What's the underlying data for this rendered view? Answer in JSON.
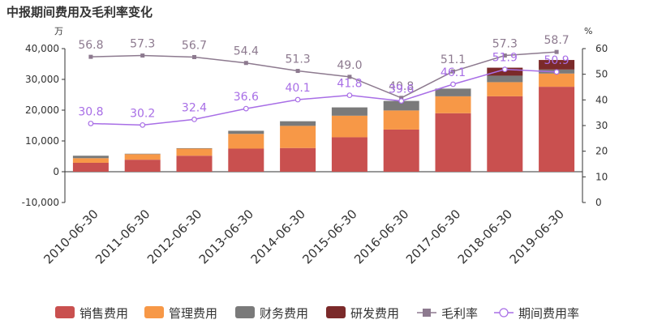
{
  "chart_data": {
    "type": "bar",
    "title": "中报期间费用及毛利率变化",
    "left_unit": "万",
    "right_unit": "%",
    "categories": [
      "2010-06-30",
      "2011-06-30",
      "2012-06-30",
      "2013-06-30",
      "2014-06-30",
      "2015-06-30",
      "2016-06-30",
      "2017-06-30",
      "2018-06-30",
      "2019-06-30"
    ],
    "ylim": [
      -10000,
      40000
    ],
    "yticks": [
      -10000,
      0,
      10000,
      20000,
      30000,
      40000
    ],
    "ytick_labels": [
      "-10,000",
      "0",
      "10,000",
      "20,000",
      "30,000",
      "40,000"
    ],
    "y2lim": [
      0,
      60
    ],
    "y2ticks": [
      0,
      10,
      20,
      30,
      40,
      50,
      60
    ],
    "bar_series": [
      {
        "name": "销售费用",
        "color": "#c9504f",
        "values": [
          2900,
          3900,
          5200,
          7500,
          7700,
          11200,
          13700,
          19000,
          24500,
          27600
        ]
      },
      {
        "name": "管理费用",
        "color": "#f79847",
        "values": [
          1500,
          1800,
          2300,
          4800,
          7200,
          7000,
          6200,
          5500,
          4600,
          4300
        ]
      },
      {
        "name": "财务费用",
        "color": "#7a7a7a",
        "values": [
          800,
          150,
          150,
          1000,
          1500,
          2700,
          3100,
          2500,
          2100,
          1300
        ]
      },
      {
        "name": "研发费用",
        "color": "#7b2a2a",
        "values": [
          0,
          0,
          0,
          0,
          0,
          0,
          0,
          0,
          2600,
          3100
        ]
      }
    ],
    "line_series": [
      {
        "name": "毛利率",
        "color": "#8d7a8f",
        "marker": "square",
        "values": [
          56.8,
          57.3,
          56.7,
          54.4,
          51.3,
          49.0,
          40.8,
          51.1,
          57.3,
          58.7
        ],
        "labels": [
          "56.8",
          "57.3",
          "56.7",
          "54.4",
          "51.3",
          "49.0",
          "40.8",
          "51.1",
          "57.3",
          "58.7"
        ]
      },
      {
        "name": "期间费用率",
        "color": "#a86ee6",
        "marker": "circle",
        "values": [
          30.8,
          30.2,
          32.4,
          36.6,
          40.1,
          41.8,
          39.6,
          46.1,
          51.9,
          50.9
        ],
        "labels": [
          "30.8",
          "30.2",
          "32.4",
          "36.6",
          "40.1",
          "41.8",
          "39.6",
          "46.1",
          "51.9",
          "50.9"
        ]
      }
    ],
    "grid": false,
    "legend_position": "bottom"
  }
}
